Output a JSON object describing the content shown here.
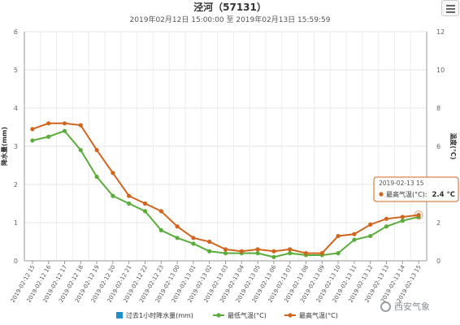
{
  "chart_data": {
    "type": "line",
    "title": "泾河（57131）",
    "subtitle": "2019年02月12日 15:00:00 至 2019年02月13日 15:59:59",
    "ylabel_left": "降水量(mm)",
    "ylabel_right": "温度(°C)",
    "ylim_left": [
      0,
      6
    ],
    "ylim_right": [
      0,
      12
    ],
    "yticks_left": [
      "0",
      "1",
      "2",
      "3",
      "4",
      "5",
      "6"
    ],
    "yticks_right": [
      "0",
      "2",
      "4",
      "6",
      "8",
      "10",
      "12"
    ],
    "categories": [
      "2019-02-12 15",
      "2019-02-12 16",
      "2019-02-12 17",
      "2019-02-12 18",
      "2019-02-12 19",
      "2019-02-12 20",
      "2019-02-12 21",
      "2019-02-12 22",
      "2019-02-12 23",
      "2019-02-13 00",
      "2019-02-13 01",
      "2019-02-13 02",
      "2019-02-13 03",
      "2019-02-13 04",
      "2019-02-13 05",
      "2019-02-13 06",
      "2019-02-13 07",
      "2019-02-13 08",
      "2019-02-13 09",
      "2019-02-13 10",
      "2019-02-13 11",
      "2019-02-13 12",
      "2019-02-13 13",
      "2019-02-13 14",
      "2019-02-13 15"
    ],
    "series": [
      {
        "name": "过去1小时降水量(mm)",
        "color": "#1f8fc8",
        "axis": "left",
        "values": [
          0,
          0,
          0,
          0,
          0,
          0,
          0,
          0,
          0,
          0,
          0,
          0,
          0,
          0,
          0,
          0,
          0,
          0,
          0,
          0,
          0,
          0,
          0,
          0,
          0
        ]
      },
      {
        "name": "最低气温(°C)",
        "color": "#5aad3a",
        "axis": "right",
        "values": [
          6.3,
          6.5,
          6.8,
          5.8,
          4.4,
          3.4,
          3.0,
          2.6,
          1.6,
          1.2,
          0.9,
          0.5,
          0.4,
          0.4,
          0.4,
          0.2,
          0.4,
          0.3,
          0.3,
          0.4,
          1.1,
          1.3,
          1.8,
          2.1,
          2.3
        ]
      },
      {
        "name": "最高气温(°C)",
        "color": "#d2651e",
        "axis": "right",
        "values": [
          6.9,
          7.2,
          7.2,
          7.1,
          5.8,
          4.6,
          3.4,
          3.0,
          2.6,
          1.8,
          1.2,
          1.0,
          0.6,
          0.5,
          0.6,
          0.5,
          0.6,
          0.4,
          0.4,
          1.3,
          1.4,
          1.9,
          2.2,
          2.3,
          2.4
        ]
      }
    ],
    "legend_position": "bottom-center",
    "grid": true,
    "tooltip": {
      "header": "2019-02-13 15",
      "series": "最高气温(°C):",
      "value": "2.4 °C",
      "index": 24
    }
  },
  "ui": {
    "menu_icon": "hamburger-menu-icon",
    "watermark": "西安气象",
    "watermark_icon": "wechat-logo-icon"
  }
}
